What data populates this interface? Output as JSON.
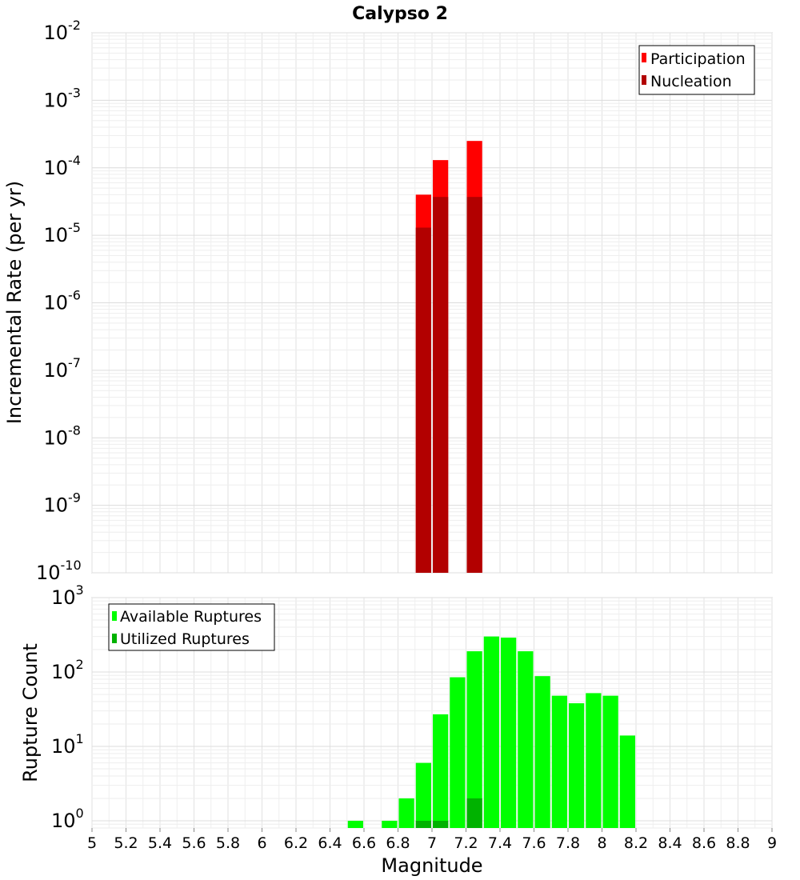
{
  "title": "Calypso 2",
  "chart_data": [
    {
      "type": "bar",
      "ylabel": "Incremental Rate (per yr)",
      "xlabel": "",
      "xlim": [
        5,
        9
      ],
      "ylim": [
        1e-10,
        0.01
      ],
      "y_scale": "log",
      "grid": true,
      "legend_position": "top-right",
      "y_tick_exponents": [
        "-10",
        "-9",
        "-8",
        "-7",
        "-6",
        "-5",
        "-4",
        "-3",
        "-2"
      ],
      "bar_width": 0.1,
      "series": [
        {
          "name": "Participation",
          "color": "#ff0000",
          "x": [
            6.95,
            7.05,
            7.25
          ],
          "values": [
            4e-05,
            0.00013,
            0.00025
          ]
        },
        {
          "name": "Nucleation",
          "color": "#b20000",
          "x": [
            6.95,
            7.05,
            7.25
          ],
          "values": [
            1.3e-05,
            3.7e-05,
            3.7e-05
          ]
        }
      ]
    },
    {
      "type": "bar",
      "ylabel": "Rupture Count",
      "xlabel": "Magnitude",
      "xlim": [
        5,
        9
      ],
      "ylim": [
        0.8,
        1000
      ],
      "y_scale": "log",
      "grid": true,
      "legend_position": "top-left",
      "y_tick_exponents": [
        "0",
        "1",
        "2",
        "3"
      ],
      "x_ticks": [
        "5",
        "5.2",
        "5.4",
        "5.6",
        "5.8",
        "6",
        "6.2",
        "6.4",
        "6.6",
        "6.8",
        "7",
        "7.2",
        "7.4",
        "7.6",
        "7.8",
        "8",
        "8.2",
        "8.4",
        "8.6",
        "8.8",
        "9"
      ],
      "bar_width": 0.1,
      "series": [
        {
          "name": "Available Ruptures",
          "color": "#00ff00",
          "x": [
            6.55,
            6.75,
            6.85,
            6.95,
            7.05,
            7.15,
            7.25,
            7.35,
            7.45,
            7.55,
            7.65,
            7.75,
            7.85,
            7.95,
            8.05,
            8.15
          ],
          "values": [
            1,
            1,
            2,
            6,
            27,
            85,
            190,
            300,
            290,
            190,
            88,
            48,
            38,
            52,
            48,
            14
          ]
        },
        {
          "name": "Utilized Ruptures",
          "color": "#00b200",
          "x": [
            6.95,
            7.05,
            7.25
          ],
          "values": [
            1,
            1,
            2
          ]
        }
      ]
    }
  ]
}
